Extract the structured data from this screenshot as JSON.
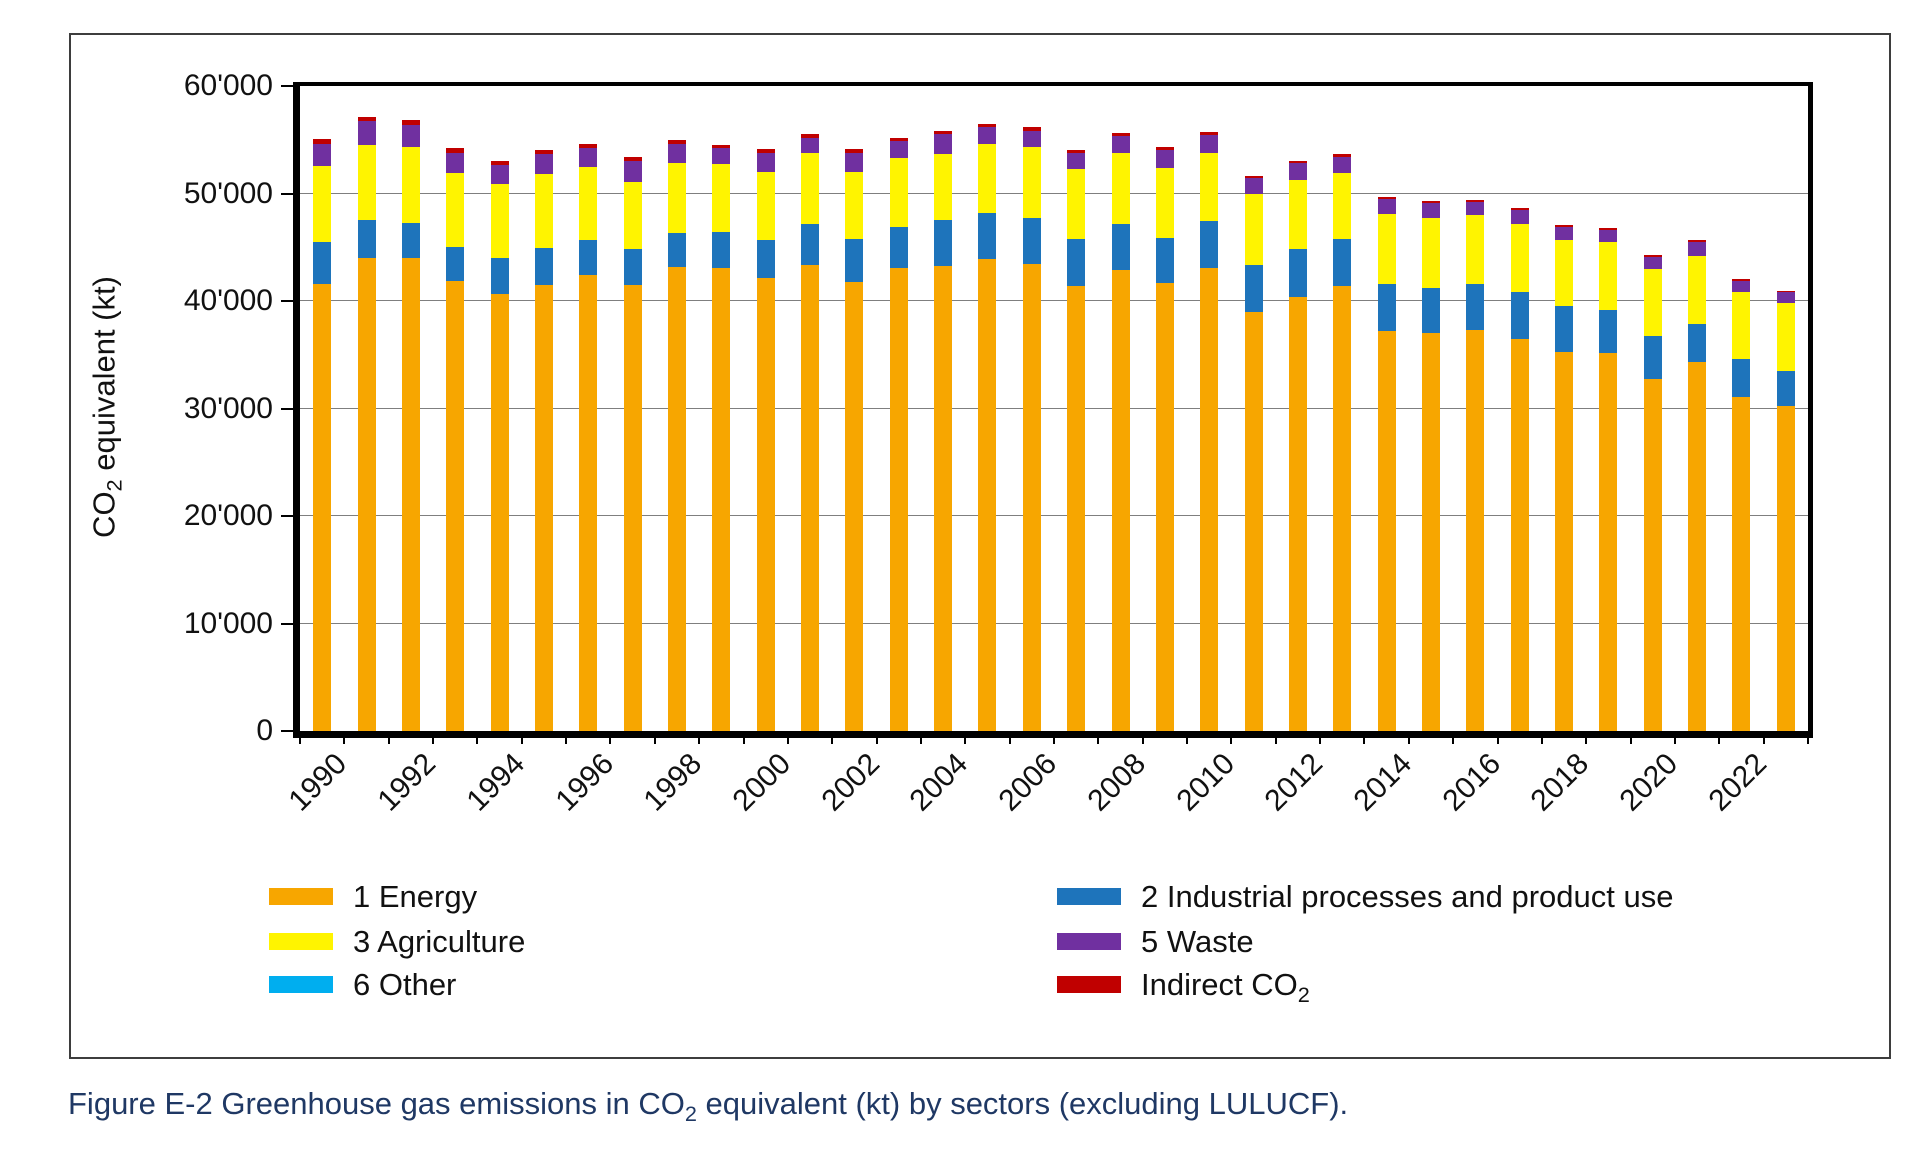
{
  "figure": {
    "caption": {
      "pre": "Figure E-2 Greenhouse gas emissions in CO",
      "sub": "2",
      "post": " equivalent (kt) by sectors (excluding LULUCF)."
    }
  },
  "chart_data": {
    "type": "bar",
    "stacked": true,
    "title": "",
    "xlabel": "",
    "ylabel_parts": {
      "pre": "CO",
      "sub": "2",
      "post": " equivalent (kt)"
    },
    "ylim": [
      0,
      60000
    ],
    "grid": true,
    "legend_position": "bottom",
    "categories": [
      1990,
      1991,
      1992,
      1993,
      1994,
      1995,
      1996,
      1997,
      1998,
      1999,
      2000,
      2001,
      2002,
      2003,
      2004,
      2005,
      2006,
      2007,
      2008,
      2009,
      2010,
      2011,
      2012,
      2013,
      2014,
      2015,
      2016,
      2017,
      2018,
      2019,
      2020,
      2021,
      2022,
      2023
    ],
    "series": [
      {
        "name": "1 Energy",
        "color": "#F7A600",
        "values": [
          41600,
          44000,
          44000,
          41850,
          40650,
          41500,
          42400,
          41500,
          43200,
          43050,
          42100,
          43350,
          41800,
          43050,
          43300,
          43900,
          43450,
          41400,
          42850,
          41650,
          43050,
          39000,
          40400,
          41400,
          37200,
          37000,
          37300,
          36500,
          35300,
          35200,
          32700,
          34300,
          31100,
          30200
        ]
      },
      {
        "name": "2 Industrial processes and product use",
        "color": "#1E74BB",
        "values": [
          3900,
          3550,
          3300,
          3150,
          3350,
          3400,
          3300,
          3300,
          3150,
          3350,
          3600,
          3800,
          3950,
          3800,
          4250,
          4300,
          4250,
          4400,
          4300,
          4200,
          4400,
          4350,
          4450,
          4350,
          4400,
          4200,
          4300,
          4300,
          4200,
          4000,
          4000,
          3600,
          3500,
          3300
        ]
      },
      {
        "name": "3 Agriculture",
        "color": "#FFF400",
        "values": [
          7100,
          7000,
          7050,
          6950,
          6850,
          6900,
          6750,
          6300,
          6450,
          6350,
          6300,
          6650,
          6250,
          6500,
          6100,
          6400,
          6600,
          6500,
          6600,
          6500,
          6300,
          6600,
          6450,
          6150,
          6450,
          6550,
          6400,
          6400,
          6200,
          6300,
          6300,
          6300,
          6200,
          6300
        ]
      },
      {
        "name": "5 Waste",
        "color": "#7030A0",
        "values": [
          2000,
          2150,
          2050,
          1850,
          1800,
          1900,
          1800,
          1950,
          1800,
          1450,
          1750,
          1400,
          1750,
          1500,
          1850,
          1550,
          1550,
          1450,
          1600,
          1700,
          1700,
          1450,
          1500,
          1500,
          1400,
          1350,
          1200,
          1250,
          1200,
          1100,
          1100,
          1300,
          1100,
          1000
        ]
      },
      {
        "name": "6 Other",
        "color": "#00AEEF",
        "values": [
          0,
          0,
          0,
          0,
          0,
          0,
          0,
          0,
          0,
          0,
          0,
          0,
          0,
          0,
          0,
          0,
          0,
          0,
          0,
          0,
          0,
          0,
          0,
          0,
          0,
          0,
          0,
          0,
          0,
          0,
          0,
          0,
          0,
          0
        ]
      },
      {
        "name": "Indirect CO2",
        "color": "#C00000",
        "values": [
          450,
          450,
          430,
          400,
          400,
          380,
          380,
          380,
          380,
          350,
          350,
          350,
          350,
          350,
          300,
          300,
          300,
          300,
          250,
          250,
          250,
          250,
          250,
          250,
          200,
          200,
          200,
          200,
          200,
          200,
          150,
          150,
          150,
          150
        ]
      }
    ],
    "y_ticks": [
      {
        "label": "60'000",
        "value": 60000
      },
      {
        "label": "50'000",
        "value": 50000
      },
      {
        "label": "40'000",
        "value": 40000
      },
      {
        "label": "30'000",
        "value": 30000
      },
      {
        "label": "20'000",
        "value": 20000
      },
      {
        "label": "10'000",
        "value": 10000
      },
      {
        "label": "0",
        "value": 0
      }
    ],
    "x_tick_labels": [
      {
        "label": "1990",
        "slot": 0
      },
      {
        "label": "1992",
        "slot": 2
      },
      {
        "label": "1994",
        "slot": 4
      },
      {
        "label": "1996",
        "slot": 6
      },
      {
        "label": "1998",
        "slot": 8
      },
      {
        "label": "2000",
        "slot": 10
      },
      {
        "label": "2002",
        "slot": 12
      },
      {
        "label": "2004",
        "slot": 14
      },
      {
        "label": "2006",
        "slot": 16
      },
      {
        "label": "2008",
        "slot": 18
      },
      {
        "label": "2010",
        "slot": 20
      },
      {
        "label": "2012",
        "slot": 22
      },
      {
        "label": "2014",
        "slot": 24
      },
      {
        "label": "2016",
        "slot": 26
      },
      {
        "label": "2018",
        "slot": 28
      },
      {
        "label": "2020",
        "slot": 30
      },
      {
        "label": "2022",
        "slot": 32
      }
    ],
    "legend_columns": [
      [
        {
          "main": "1 Energy",
          "sub": "",
          "color": "#F7A600"
        },
        {
          "main": "3 Agriculture",
          "sub": "",
          "color": "#FFF400"
        },
        {
          "main": "6 Other",
          "sub": "",
          "color": "#00AEEF"
        }
      ],
      [
        {
          "main": "2 Industrial processes and product use",
          "sub": "",
          "color": "#1E74BB"
        },
        {
          "main": "5 Waste",
          "sub": "",
          "color": "#7030A0"
        },
        {
          "main": "Indirect CO",
          "sub": "2",
          "color": "#C00000"
        }
      ]
    ],
    "colors": {
      "gridline": "#7f7f7f",
      "axis": "#000000",
      "caption_text": "#1F3864"
    }
  }
}
